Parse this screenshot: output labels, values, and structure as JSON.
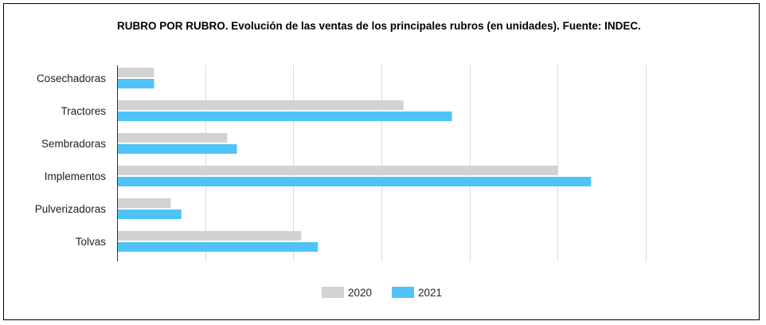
{
  "chart_data": {
    "type": "bar",
    "orientation": "horizontal",
    "title": "RUBRO POR RUBRO. Evolución de las ventas de los principales rubros (en unidades). Fuente: INDEC.",
    "categories": [
      "Cosechadoras",
      "Tractores",
      "Sembradoras",
      "Implementos",
      "Pulverizadoras",
      "Tolvas"
    ],
    "series": [
      {
        "name": "2020",
        "color": "#d2d2d2",
        "values": [
          420,
          3250,
          1250,
          5000,
          610,
          2090
        ]
      },
      {
        "name": "2021",
        "color": "#4fc3f7",
        "values": [
          420,
          3800,
          1360,
          5380,
          730,
          2280
        ]
      }
    ],
    "xlim": [
      0,
      6000
    ],
    "grid": true,
    "legend_position": "bottom"
  }
}
